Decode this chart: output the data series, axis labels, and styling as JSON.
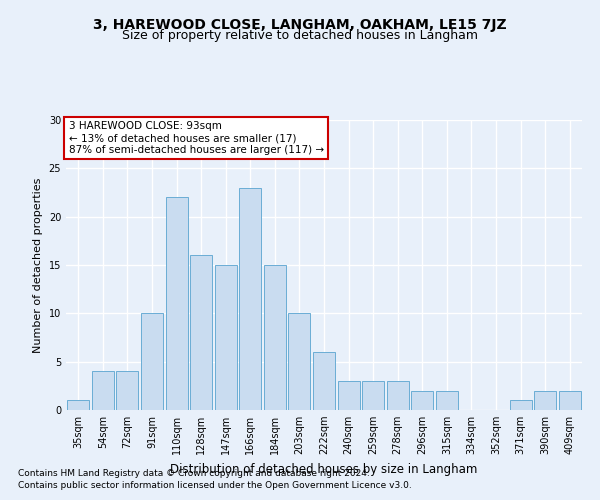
{
  "title": "3, HAREWOOD CLOSE, LANGHAM, OAKHAM, LE15 7JZ",
  "subtitle": "Size of property relative to detached houses in Langham",
  "xlabel": "Distribution of detached houses by size in Langham",
  "ylabel": "Number of detached properties",
  "categories": [
    "35sqm",
    "54sqm",
    "72sqm",
    "91sqm",
    "110sqm",
    "128sqm",
    "147sqm",
    "166sqm",
    "184sqm",
    "203sqm",
    "222sqm",
    "240sqm",
    "259sqm",
    "278sqm",
    "296sqm",
    "315sqm",
    "334sqm",
    "352sqm",
    "371sqm",
    "390sqm",
    "409sqm"
  ],
  "values": [
    1,
    4,
    4,
    10,
    22,
    16,
    15,
    23,
    15,
    10,
    6,
    3,
    3,
    3,
    2,
    2,
    0,
    0,
    1,
    2,
    2
  ],
  "bar_color": "#c9dcf0",
  "bar_edge_color": "#6aadd5",
  "annotation_title": "3 HAREWOOD CLOSE: 93sqm",
  "annotation_line1": "← 13% of detached houses are smaller (17)",
  "annotation_line2": "87% of semi-detached houses are larger (117) →",
  "annotation_box_color": "#ffffff",
  "annotation_box_edge": "#cc0000",
  "ylim": [
    0,
    30
  ],
  "yticks": [
    0,
    5,
    10,
    15,
    20,
    25,
    30
  ],
  "footer1": "Contains HM Land Registry data © Crown copyright and database right 2024.",
  "footer2": "Contains public sector information licensed under the Open Government Licence v3.0.",
  "background_color": "#e8f0fa",
  "plot_bg_color": "#e8f0fa",
  "grid_color": "#ffffff",
  "title_fontsize": 10,
  "subtitle_fontsize": 9,
  "xlabel_fontsize": 8.5,
  "ylabel_fontsize": 8,
  "tick_fontsize": 7,
  "footer_fontsize": 6.5,
  "annotation_fontsize": 7.5
}
